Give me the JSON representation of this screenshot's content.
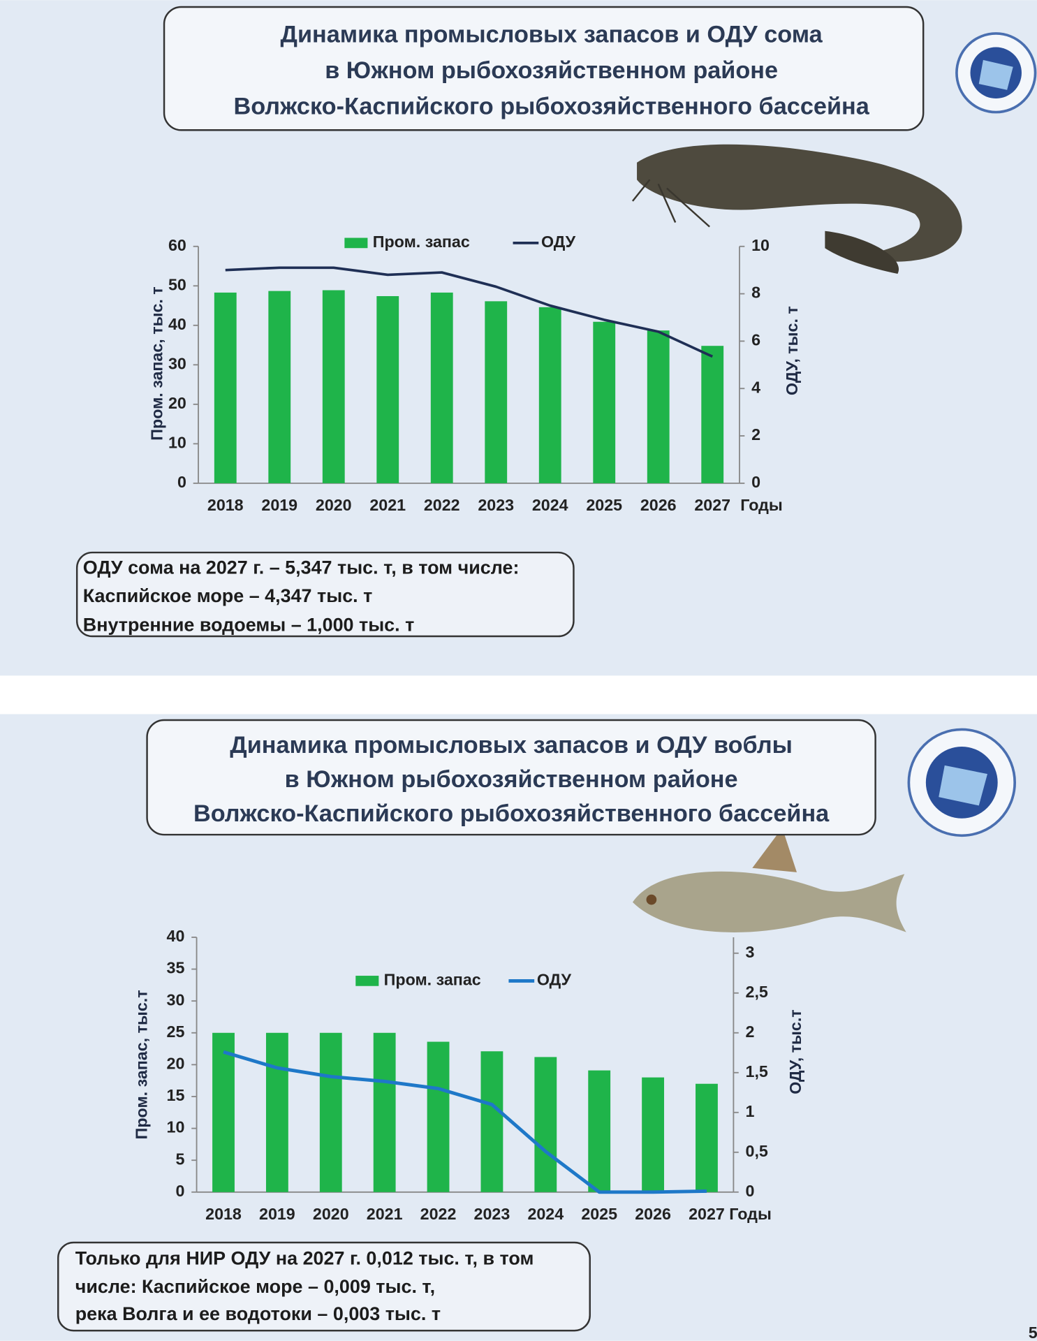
{
  "chart_data": [
    {
      "type": "bar",
      "title": [
        "Динамика промысловых запасов  и ОДУ сома",
        "в Южном рыбохозяйственном районе",
        "Волжско-Каспийского рыбохозяйственного бассейна"
      ],
      "categories": [
        "2018",
        "2019",
        "2020",
        "2021",
        "2022",
        "2023",
        "2024",
        "2025",
        "2026",
        "2027"
      ],
      "x_label": "Годы",
      "y_label": "Пром. запас, тыс. т",
      "y2_label": "ОДУ, тыс. т",
      "series": [
        {
          "name": "Пром. запас",
          "type": "bar",
          "color": "#1fb44a",
          "values": [
            48.3,
            48.7,
            48.9,
            47.4,
            48.3,
            46.1,
            44.6,
            40.9,
            38.7,
            34.8
          ]
        },
        {
          "name": "ОДУ",
          "type": "line",
          "axis": "y2",
          "color": "#1f2f55",
          "values": [
            9.0,
            9.1,
            9.1,
            8.8,
            8.9,
            8.3,
            7.5,
            6.9,
            6.4,
            5.35
          ]
        }
      ],
      "ylim": [
        0,
        60
      ],
      "yticks": [
        0,
        10,
        20,
        30,
        40,
        50,
        60
      ],
      "y2lim": [
        0,
        10
      ],
      "y2ticks": [
        0,
        2,
        4,
        6,
        8,
        10
      ],
      "legend": "top",
      "annotations": [
        "ОДУ сома на 2027 г.  – 5,347 тыс. т, в том числе:",
        "Каспийское море – 4,347 тыс. т",
        "Внутренние водоемы – 1,000 тыс. т"
      ]
    },
    {
      "type": "bar",
      "title": [
        "Динамика промысловых запасов  и ОДУ воблы",
        "в Южном рыбохозяйственном районе",
        "Волжско-Каспийского рыбохозяйственного бассейна"
      ],
      "categories": [
        "2018",
        "2019",
        "2020",
        "2021",
        "2022",
        "2023",
        "2024",
        "2025",
        "2026",
        "2027"
      ],
      "x_label": "Годы",
      "y_label": "Пром. запас, тыс.т",
      "y2_label": "ОДУ, тыс.т",
      "series": [
        {
          "name": "Пром. запас",
          "type": "bar",
          "color": "#1fb44a",
          "values": [
            25,
            25,
            25,
            25,
            23.6,
            22.1,
            21.2,
            19.1,
            18,
            17
          ]
        },
        {
          "name": "ОДУ",
          "type": "line",
          "axis": "y2",
          "color": "#1e78c8",
          "values": [
            1.76,
            1.56,
            1.45,
            1.39,
            1.3,
            1.1,
            0.51,
            0,
            0,
            0.012
          ]
        }
      ],
      "ylim": [
        0,
        40
      ],
      "yticks": [
        0,
        5,
        10,
        15,
        20,
        25,
        30,
        35,
        40
      ],
      "y2lim": [
        0,
        3.2
      ],
      "y2ticks": [
        0,
        {
          "value": 0.5,
          "label": "0,5"
        },
        1,
        {
          "value": 1.5,
          "label": "1,5"
        },
        2,
        {
          "value": 2.5,
          "label": "2,5"
        },
        3
      ],
      "legend": "top",
      "annotations": [
        "Только для НИР ОДУ  на 2027 г. 0,012 тыс. т, в том",
        "числе:  Каспийское море – 0,009 тыс. т,",
        "река Волга и ее водотоки – 0,003 тыс. т"
      ]
    }
  ],
  "page_number": "5"
}
